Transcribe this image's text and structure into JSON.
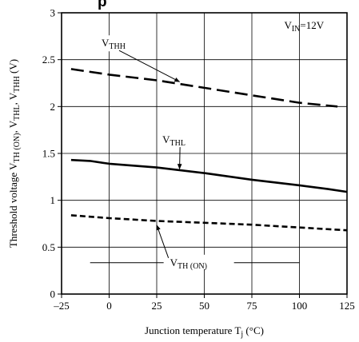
{
  "header": {
    "visible_text": "p"
  },
  "chart_data": {
    "type": "line",
    "xlabel": "Junction temperature T",
    "xlabel_sub": "j",
    "xlabel_unit": " (°C)",
    "ylabel": "Threshold voltage V",
    "ylabel_parts": [
      {
        "t": "Threshold voltage V"
      },
      {
        "t": "TH (ON)",
        "sub": true
      },
      {
        "t": ", V"
      },
      {
        "t": "THL",
        "sub": true
      },
      {
        "t": ",  V"
      },
      {
        "t": "THH",
        "sub": true
      },
      {
        "t": "  (V)"
      }
    ],
    "xlim": [
      -25,
      125
    ],
    "ylim": [
      0,
      3
    ],
    "x_ticks": [
      -25,
      0,
      25,
      50,
      75,
      100,
      125
    ],
    "x_tick_labels": [
      "–25",
      "0",
      "25",
      "50",
      "75",
      "100",
      "125"
    ],
    "y_ticks": [
      0,
      0.5,
      1,
      1.5,
      2,
      2.5,
      3
    ],
    "y_tick_labels": [
      "0",
      "0.5",
      "1",
      "1.5",
      "2",
      "2.5",
      "3"
    ],
    "grid": true,
    "legend": "none",
    "condition": {
      "base": "V",
      "sub": "IN",
      "rest": "=12V"
    },
    "series": [
      {
        "name": "VTHH",
        "label_base": "V",
        "label_sub": "THH",
        "style": "dashed",
        "x": [
          -20,
          0,
          25,
          50,
          75,
          100,
          120
        ],
        "y": [
          2.4,
          2.34,
          2.28,
          2.2,
          2.12,
          2.04,
          2.0
        ],
        "label_at": [
          -4,
          2.64
        ],
        "arrow_to": [
          37,
          2.23
        ]
      },
      {
        "name": "VTHL",
        "label_base": "V",
        "label_sub": "THL",
        "style": "solid",
        "x": [
          -20,
          -10,
          0,
          25,
          50,
          75,
          100,
          115,
          125
        ],
        "y": [
          1.43,
          1.42,
          1.39,
          1.35,
          1.29,
          1.22,
          1.16,
          1.12,
          1.09
        ],
        "label_at": [
          28,
          1.61
        ],
        "arrow_to": [
          37,
          1.3
        ]
      },
      {
        "name": "VTH (ON)",
        "label_base": "V",
        "label_sub": "TH (ON)",
        "style": "short-dashed",
        "x": [
          -20,
          0,
          25,
          50,
          75,
          100,
          125
        ],
        "y": [
          0.84,
          0.81,
          0.78,
          0.76,
          0.74,
          0.71,
          0.68
        ],
        "label_at": [
          32,
          0.3
        ],
        "arrow_to": [
          25,
          0.77
        ]
      }
    ]
  }
}
